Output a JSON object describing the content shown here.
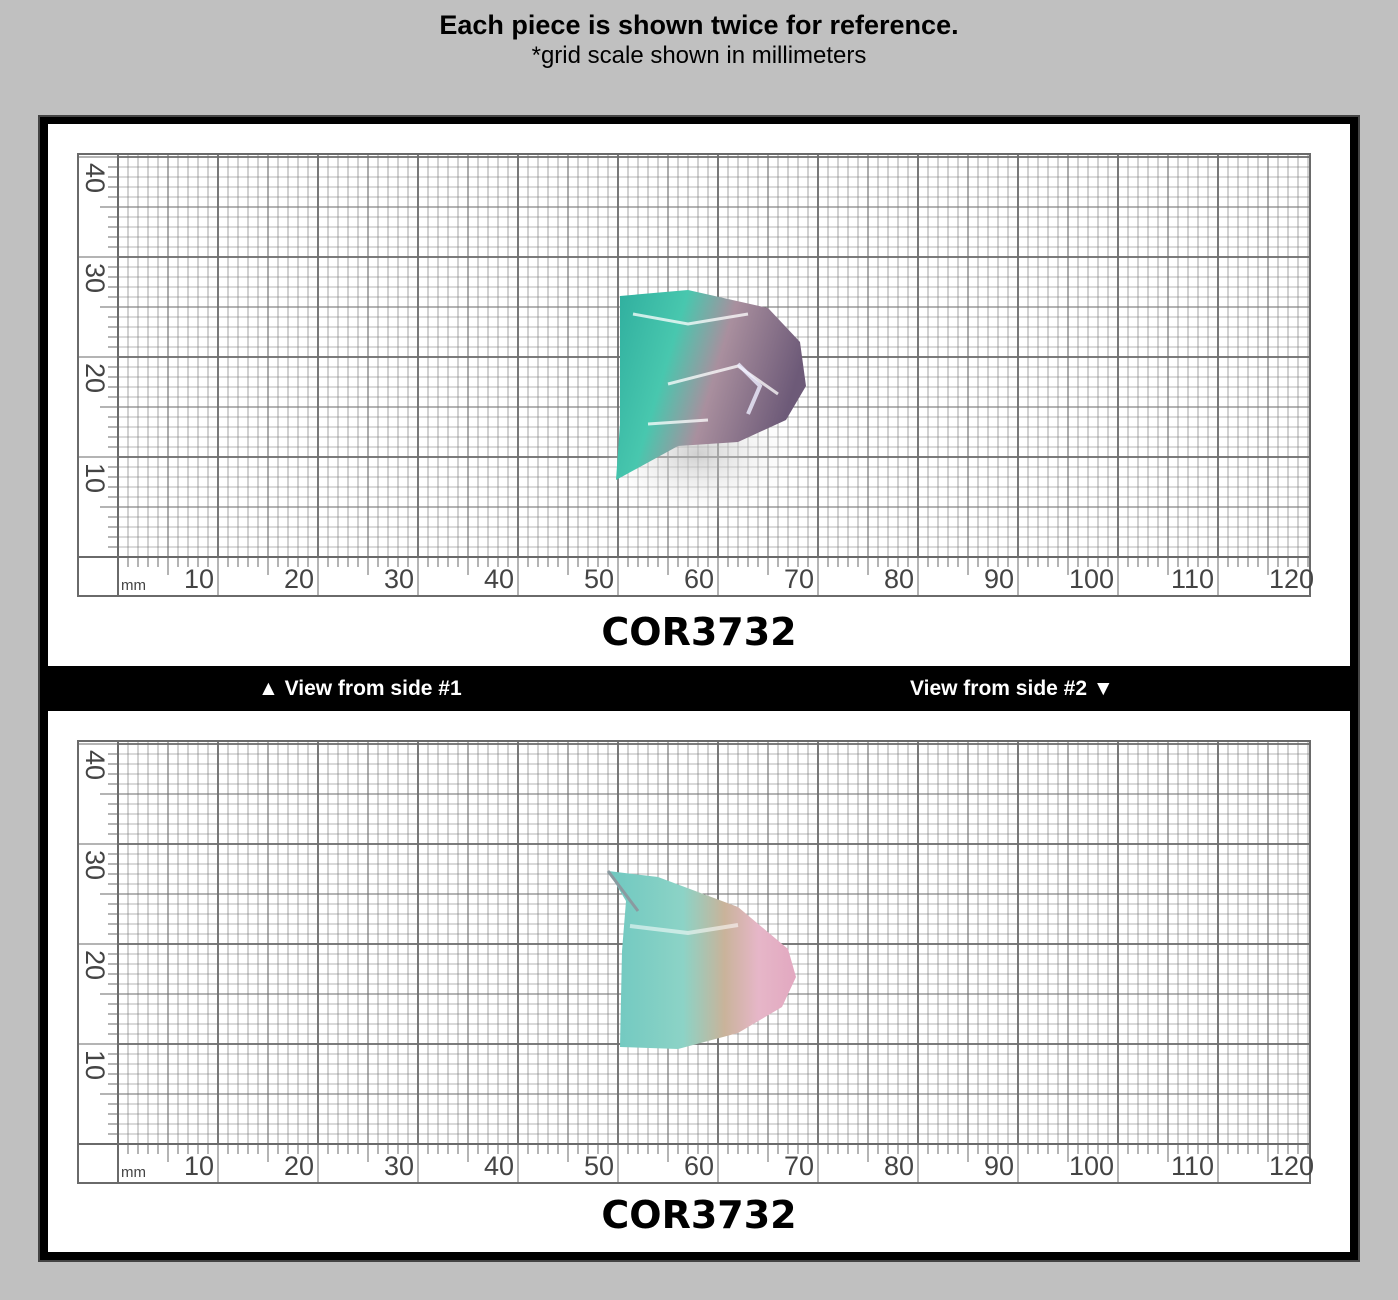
{
  "header": {
    "title": "Each piece is shown twice for reference.",
    "subtitle": "*grid scale shown in millimeters"
  },
  "panels": [
    {
      "sku": "COR3732"
    },
    {
      "sku": "COR3732"
    }
  ],
  "views": {
    "side1": "▲ View from side #1",
    "side2": "View from side #2 ▼"
  },
  "ruler": {
    "unit": "mm",
    "x_ticks": [
      "10",
      "20",
      "30",
      "40",
      "50",
      "60",
      "70",
      "80",
      "90",
      "100",
      "110",
      "120"
    ],
    "y_ticks": [
      "40",
      "30",
      "20",
      "10"
    ]
  },
  "colors": {
    "background": "#c0c0c0",
    "grid_line": "#6a6a6a",
    "gem_teal": "#3fb8a8",
    "gem_pink": "#d9a0b8"
  }
}
